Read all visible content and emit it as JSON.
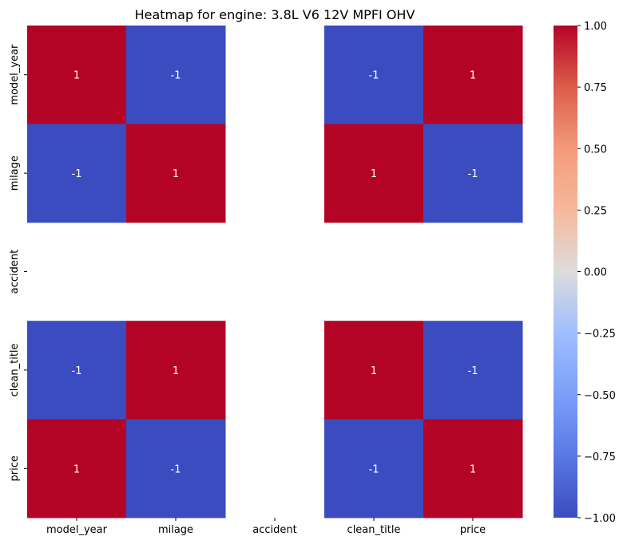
{
  "chart_data": {
    "type": "heatmap",
    "title": "Heatmap for engine: 3.8L V6 12V MPFI OHV",
    "x_labels": [
      "model_year",
      "milage",
      "accident",
      "clean_title",
      "price"
    ],
    "y_labels": [
      "model_year",
      "milage",
      "accident",
      "clean_title",
      "price"
    ],
    "values": [
      [
        1,
        -1,
        null,
        -1,
        1
      ],
      [
        -1,
        1,
        null,
        1,
        -1
      ],
      [
        null,
        null,
        null,
        null,
        null
      ],
      [
        -1,
        1,
        null,
        1,
        -1
      ],
      [
        1,
        -1,
        null,
        -1,
        1
      ]
    ],
    "annotations": [
      [
        "1",
        "-1",
        "",
        "-1",
        "1"
      ],
      [
        "-1",
        "1",
        "",
        "1",
        "-1"
      ],
      [
        "",
        "",
        "",
        "",
        ""
      ],
      [
        "-1",
        "1",
        "",
        "1",
        "-1"
      ],
      [
        "1",
        "-1",
        "",
        "-1",
        "1"
      ]
    ],
    "colormap": "coolwarm",
    "vmin": -1,
    "vmax": 1,
    "colorbar_ticks": [
      1.0,
      0.75,
      0.5,
      0.25,
      0.0,
      -0.25,
      -0.5,
      -0.75,
      -1.0
    ],
    "colorbar_tick_labels": [
      "1.00",
      "0.75",
      "0.50",
      "0.25",
      "0.00",
      "−0.25",
      "−0.50",
      "−0.75",
      "−1.00"
    ],
    "colors": {
      "high": "#b40426",
      "low": "#3b4cc0",
      "mid": "#dddcdc"
    }
  }
}
